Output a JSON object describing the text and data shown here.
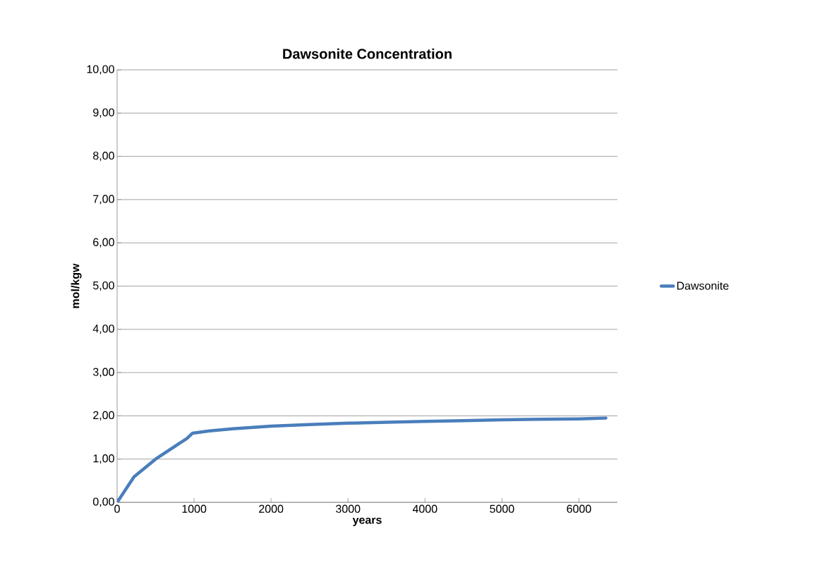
{
  "chart_data": {
    "type": "line",
    "title": "Dawsonite Concentration",
    "xlabel": "years",
    "ylabel": "mol/kgw",
    "series": [
      {
        "name": "Dawsonite",
        "color": "#4a7ebb",
        "x": [
          0,
          220,
          500,
          908,
          980,
          1200,
          1500,
          2000,
          2500,
          3000,
          3500,
          4000,
          4500,
          5000,
          5500,
          6000,
          6350
        ],
        "values": [
          0,
          0.59,
          1.0,
          1.48,
          1.6,
          1.65,
          1.7,
          1.76,
          1.8,
          1.83,
          1.85,
          1.87,
          1.89,
          1.91,
          1.92,
          1.93,
          1.95
        ]
      }
    ],
    "xlim": [
      0,
      6500
    ],
    "xticks": [
      0,
      1000,
      2000,
      3000,
      4000,
      5000,
      6000
    ],
    "ylim": [
      0,
      10
    ],
    "yticks": [
      {
        "value": 0,
        "label": "0,00"
      },
      {
        "value": 1,
        "label": "1,00"
      },
      {
        "value": 2,
        "label": "2,00"
      },
      {
        "value": 3,
        "label": "3,00"
      },
      {
        "value": 4,
        "label": "4,00"
      },
      {
        "value": 5,
        "label": "5,00"
      },
      {
        "value": 6,
        "label": "6,00"
      },
      {
        "value": 7,
        "label": "7,00"
      },
      {
        "value": 8,
        "label": "8,00"
      },
      {
        "value": 9,
        "label": "9,00"
      },
      {
        "value": 10,
        "label": "10,00"
      }
    ],
    "grid": "y",
    "legend": "right",
    "marker": "none",
    "line_style": "solid"
  }
}
